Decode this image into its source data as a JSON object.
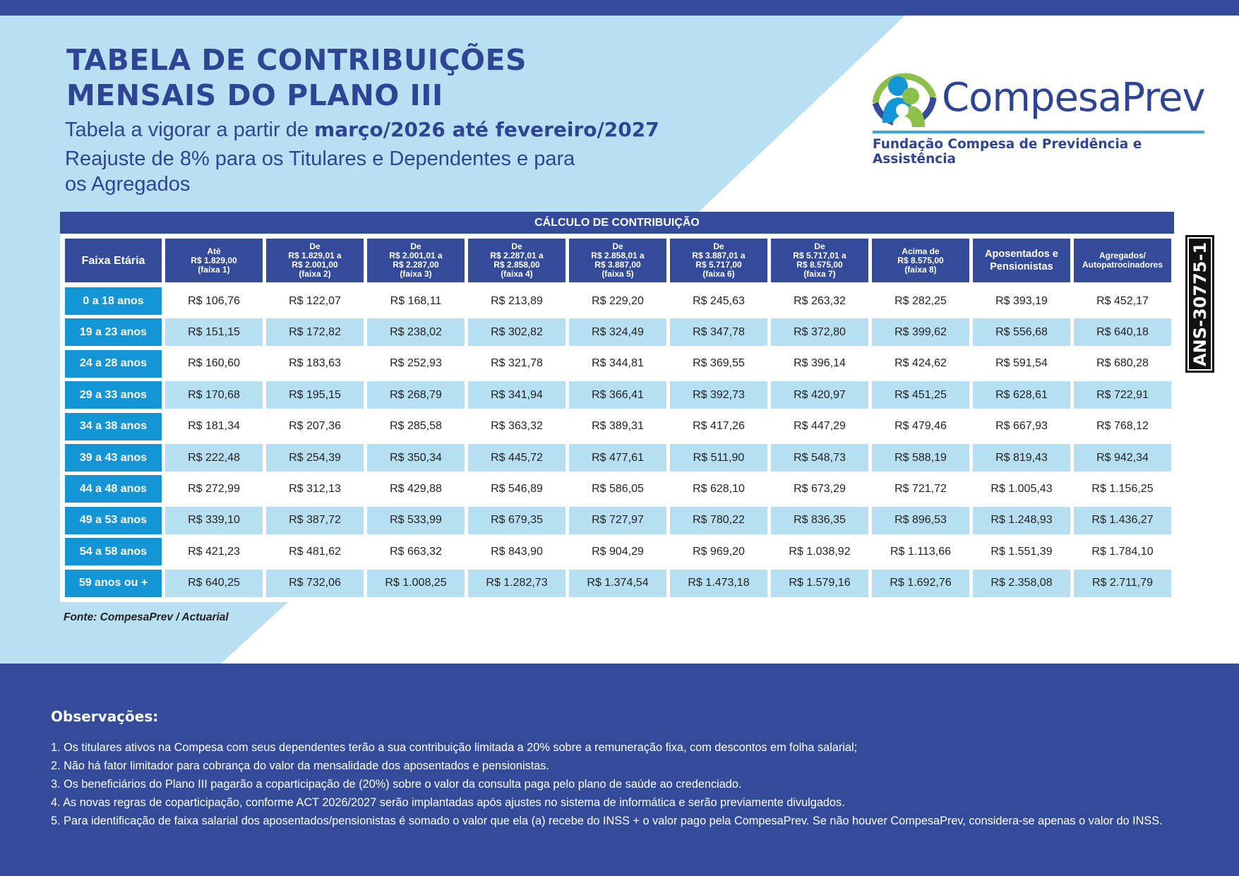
{
  "header": {
    "title_line1": "TABELA DE CONTRIBUIÇÕES",
    "title_line2": "MENSAIS DO PLANO III",
    "validity_prefix": "Tabela a vigorar a partir de ",
    "validity_period": "março/2026 até fevereiro/2027",
    "adjustment_line1": "Reajuste de 8% para os Titulares e Dependentes e para",
    "adjustment_line2": "os Agregados"
  },
  "logo": {
    "name": "CompesaPrev",
    "subtitle": "Fundação Compesa de Previdência e Assistência"
  },
  "badge": "ANS-30775-1",
  "table": {
    "title": "CÁLCULO DE CONTRIBUIÇÃO",
    "columns": [
      {
        "lines": [
          "Faixa Etária"
        ]
      },
      {
        "lines": [
          "Até",
          "R$ 1.829,00",
          "(faixa 1)"
        ]
      },
      {
        "lines": [
          "De",
          "R$ 1.829,01 a",
          "R$ 2.001,00",
          "(faixa 2)"
        ]
      },
      {
        "lines": [
          "De",
          "R$ 2.001,01 a",
          "R$ 2.287,00",
          "(faixa 3)"
        ]
      },
      {
        "lines": [
          "De",
          "R$ 2.287,01 a",
          "R$ 2.858,00",
          "(faixa 4)"
        ]
      },
      {
        "lines": [
          "De",
          "R$ 2.858,01 a",
          "R$ 3.887,00",
          "(faixa 5)"
        ]
      },
      {
        "lines": [
          "De",
          "R$ 3.887,01 a",
          "R$ 5.717,00",
          "(faixa 6)"
        ]
      },
      {
        "lines": [
          "De",
          "R$ 5.717,01 a",
          "R$ 8.575,00",
          "(faixa 7)"
        ]
      },
      {
        "lines": [
          "Acima de",
          "R$ 8.575,00",
          "(faixa 8)"
        ]
      },
      {
        "lines": [
          "Aposentados e",
          "Pensionistas"
        ]
      },
      {
        "lines": [
          "Agregados/",
          "Autopatrocinadores"
        ]
      }
    ],
    "rows": [
      {
        "age": "0 a 18 anos",
        "values": [
          "R$ 106,76",
          "R$ 122,07",
          "R$ 168,11",
          "R$ 213,89",
          "R$ 229,20",
          "R$ 245,63",
          "R$ 263,32",
          "R$ 282,25",
          "R$ 393,19",
          "R$ 452,17"
        ]
      },
      {
        "age": "19 a 23 anos",
        "values": [
          "R$ 151,15",
          "R$ 172,82",
          "R$ 238,02",
          "R$ 302,82",
          "R$ 324,49",
          "R$ 347,78",
          "R$ 372,80",
          "R$ 399,62",
          "R$ 556,68",
          "R$ 640,18"
        ]
      },
      {
        "age": "24 a 28 anos",
        "values": [
          "R$ 160,60",
          "R$ 183,63",
          "R$ 252,93",
          "R$ 321,78",
          "R$ 344,81",
          "R$ 369,55",
          "R$ 396,14",
          "R$ 424,62",
          "R$ 591,54",
          "R$ 680,28"
        ]
      },
      {
        "age": "29 a 33 anos",
        "values": [
          "R$ 170,68",
          "R$ 195,15",
          "R$ 268,79",
          "R$ 341,94",
          "R$ 366,41",
          "R$ 392,73",
          "R$ 420,97",
          "R$ 451,25",
          "R$ 628,61",
          "R$ 722,91"
        ]
      },
      {
        "age": "34 a 38 anos",
        "values": [
          "R$ 181,34",
          "R$ 207,36",
          "R$ 285,58",
          "R$ 363,32",
          "R$ 389,31",
          "R$ 417,26",
          "R$ 447,29",
          "R$ 479,46",
          "R$ 667,93",
          "R$ 768,12"
        ]
      },
      {
        "age": "39 a 43 anos",
        "values": [
          "R$ 222,48",
          "R$ 254,39",
          "R$ 350,34",
          "R$ 445,72",
          "R$ 477,61",
          "R$ 511,90",
          "R$ 548,73",
          "R$ 588,19",
          "R$ 819,43",
          "R$ 942,34"
        ]
      },
      {
        "age": "44 a 48 anos",
        "values": [
          "R$ 272,99",
          "R$ 312,13",
          "R$ 429,88",
          "R$ 546,89",
          "R$ 586,05",
          "R$ 628,10",
          "R$ 673,29",
          "R$ 721,72",
          "R$ 1.005,43",
          "R$ 1.156,25"
        ]
      },
      {
        "age": "49 a 53 anos",
        "values": [
          "R$ 339,10",
          "R$ 387,72",
          "R$ 533,99",
          "R$ 679,35",
          "R$ 727,97",
          "R$ 780,22",
          "R$ 836,35",
          "R$ 896,53",
          "R$ 1.248,93",
          "R$ 1.436,27"
        ]
      },
      {
        "age": "54 a 58 anos",
        "values": [
          "R$ 421,23",
          "R$ 481,62",
          "R$ 663,32",
          "R$ 843,90",
          "R$ 904,29",
          "R$ 969,20",
          "R$ 1.038,92",
          "R$ 1.113,66",
          "R$ 1.551,39",
          "R$ 1.784,10"
        ]
      },
      {
        "age": "59 anos ou +",
        "values": [
          "R$ 640,25",
          "R$ 732,06",
          "R$ 1.008,25",
          "R$ 1.282,73",
          "R$ 1.374,54",
          "R$ 1.473,18",
          "R$ 1.579,16",
          "R$ 1.692,76",
          "R$ 2.358,08",
          "R$ 2.711,79"
        ]
      }
    ]
  },
  "source": "Fonte: CompesaPrev / Actuarial",
  "observations": {
    "heading": "Observações:",
    "items": [
      "1. Os titulares ativos na Compesa com seus dependentes terão a sua contribuição limitada a 20% sobre a remuneração fixa, com descontos em folha salarial;",
      "2. Não há fator limitador para cobrança do valor da mensalidade dos aposentados e pensionistas.",
      "3. Os beneficiários do Plano III pagarão a coparticipação de (20%) sobre o valor da consulta paga pelo plano de saúde ao credenciado.",
      "4. As novas regras de coparticipação,  conforme ACT 2026/2027 serão implantadas após ajustes no sistema de informática e serão previamente divulgados.",
      "5. Para identificação de faixa salarial dos aposentados/pensionistas é somado o valor que ela (a) recebe do INSS + o valor pago pela CompesaPrev. Se não houver CompesaPrev, considera-se apenas o valor do INSS."
    ]
  },
  "colors": {
    "dark_blue": "#344b9a",
    "age_blue": "#1496d6",
    "light_blue": "#b7dff2",
    "bg_light": "#b8e0f2"
  }
}
